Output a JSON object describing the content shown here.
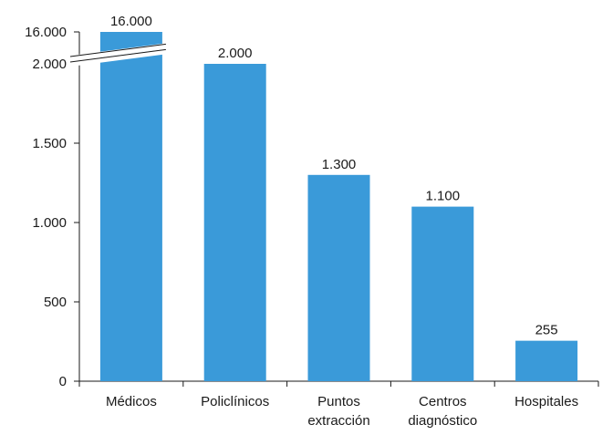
{
  "chart_data": {
    "type": "bar",
    "categories": [
      [
        "Médicos"
      ],
      [
        "Policlínicos"
      ],
      [
        "Puntos",
        "extracción"
      ],
      [
        "Centros",
        "diagnóstico"
      ],
      [
        "Hospitales"
      ]
    ],
    "values": [
      16000,
      2000,
      1300,
      1100,
      255
    ],
    "value_labels": [
      "16.000",
      "2.000",
      "1.300",
      "1.100",
      "255"
    ],
    "y_ticks": [
      {
        "value": 0,
        "label": "0"
      },
      {
        "value": 500,
        "label": "500"
      },
      {
        "value": 1000,
        "label": "1.000"
      },
      {
        "value": 1500,
        "label": "1.500"
      },
      {
        "value": 2000,
        "label": "2.000"
      }
    ],
    "axis_break": {
      "after": 2000,
      "top_label": "16.000",
      "top_value": 16000
    },
    "ylim": [
      0,
      2000
    ],
    "grid": false,
    "colors": {
      "bar": "#3a9ad9",
      "axis": "#1a1a1a"
    }
  }
}
